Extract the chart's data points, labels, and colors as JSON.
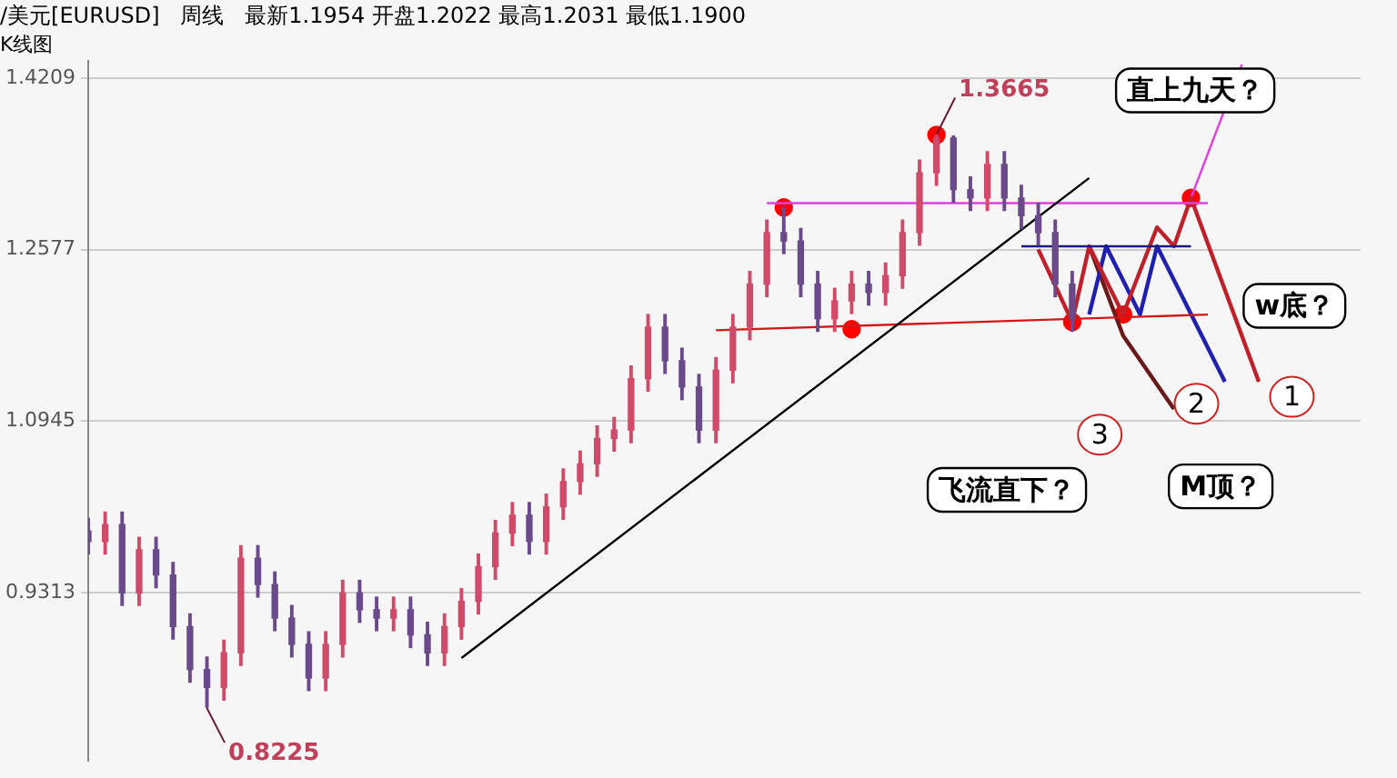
{
  "chart_data": {
    "type": "candlestick",
    "title": "/美元[EURUSD]   周线   最新1.1954 开盘1.2022 最高1.2031 最低1.1900",
    "subtitle": "K线图",
    "categories": [
      null,
      null,
      null,
      null,
      null,
      null,
      null,
      null,
      null,
      null,
      null,
      null,
      null,
      null,
      null,
      null,
      null,
      null,
      null,
      null,
      null,
      null,
      null,
      null,
      null,
      null,
      null,
      null,
      null,
      null,
      null,
      null,
      null,
      null,
      null,
      null,
      null,
      null,
      null,
      null,
      null,
      null,
      null,
      null,
      null,
      null,
      null,
      null,
      null,
      null,
      null,
      null,
      null,
      null,
      null,
      null,
      null,
      null,
      null,
      null,
      null,
      null,
      null,
      null,
      null,
      null,
      null,
      null,
      null,
      null,
      null,
      null,
      null,
      null,
      null,
      null
    ],
    "ohlc": [
      [
        0.99,
        1.002,
        0.968,
        0.98
      ],
      [
        0.98,
        1.008,
        0.968,
        0.996
      ],
      [
        0.996,
        1.008,
        0.919,
        0.931
      ],
      [
        0.931,
        0.984,
        0.919,
        0.972
      ],
      [
        0.972,
        0.984,
        0.936,
        0.948
      ],
      [
        0.948,
        0.96,
        0.887,
        0.899
      ],
      [
        0.899,
        0.911,
        0.846,
        0.858
      ],
      [
        0.858,
        0.87,
        0.8225,
        0.841
      ],
      [
        0.841,
        0.886,
        0.829,
        0.874
      ],
      [
        0.874,
        0.976,
        0.862,
        0.964
      ],
      [
        0.964,
        0.976,
        0.927,
        0.939
      ],
      [
        0.939,
        0.951,
        0.895,
        0.907
      ],
      [
        0.907,
        0.919,
        0.87,
        0.882
      ],
      [
        0.882,
        0.894,
        0.838,
        0.85
      ],
      [
        0.85,
        0.894,
        0.838,
        0.882
      ],
      [
        0.882,
        0.943,
        0.87,
        0.931
      ],
      [
        0.931,
        0.943,
        0.903,
        0.915
      ],
      [
        0.915,
        0.927,
        0.895,
        0.907
      ],
      [
        0.907,
        0.927,
        0.895,
        0.915
      ],
      [
        0.915,
        0.927,
        0.879,
        0.891
      ],
      [
        0.891,
        0.903,
        0.862,
        0.874
      ],
      [
        0.874,
        0.911,
        0.862,
        0.899
      ],
      [
        0.899,
        0.935,
        0.887,
        0.923
      ],
      [
        0.923,
        0.968,
        0.911,
        0.956
      ],
      [
        0.956,
        1.0,
        0.944,
        0.988
      ],
      [
        0.988,
        1.017,
        0.976,
        1.005
      ],
      [
        1.005,
        1.017,
        0.968,
        0.98
      ],
      [
        0.98,
        1.025,
        0.968,
        1.013
      ],
      [
        1.013,
        1.049,
        1.001,
        1.037
      ],
      [
        1.037,
        1.066,
        1.025,
        1.054
      ],
      [
        1.054,
        1.09,
        1.042,
        1.078
      ],
      [
        1.078,
        1.098,
        1.066,
        1.086
      ],
      [
        1.086,
        1.147,
        1.074,
        1.135
      ],
      [
        1.135,
        1.196,
        1.123,
        1.184
      ],
      [
        1.184,
        1.196,
        1.14,
        1.152
      ],
      [
        1.152,
        1.164,
        1.115,
        1.127
      ],
      [
        1.127,
        1.139,
        1.074,
        1.086
      ],
      [
        1.086,
        1.155,
        1.074,
        1.143
      ],
      [
        1.143,
        1.196,
        1.131,
        1.184
      ],
      [
        1.184,
        1.237,
        1.172,
        1.225
      ],
      [
        1.225,
        1.286,
        1.213,
        1.274
      ],
      [
        1.274,
        1.298,
        1.254,
        1.266
      ],
      [
        1.266,
        1.278,
        1.213,
        1.225
      ],
      [
        1.225,
        1.237,
        1.18,
        1.192
      ],
      [
        1.192,
        1.221,
        1.18,
        1.209
      ],
      [
        1.209,
        1.237,
        1.197,
        1.225
      ],
      [
        1.225,
        1.237,
        1.205,
        1.217
      ],
      [
        1.217,
        1.245,
        1.205,
        1.233
      ],
      [
        1.233,
        1.286,
        1.221,
        1.274
      ],
      [
        1.274,
        1.343,
        1.262,
        1.331
      ],
      [
        1.331,
        1.3665,
        1.319,
        1.364
      ],
      [
        1.364,
        1.366,
        1.303,
        1.315
      ],
      [
        1.315,
        1.327,
        1.295,
        1.307
      ],
      [
        1.307,
        1.351,
        1.295,
        1.339
      ],
      [
        1.339,
        1.351,
        1.295,
        1.307
      ],
      [
        1.307,
        1.319,
        1.278,
        1.29
      ],
      [
        1.29,
        1.302,
        1.262,
        1.274
      ],
      [
        1.274,
        1.286,
        1.213,
        1.225
      ],
      [
        1.225,
        1.237,
        1.18,
        1.192
      ],
      null,
      null,
      null,
      null,
      null,
      null,
      null,
      null,
      null,
      null,
      null,
      null,
      null,
      null,
      null,
      null,
      null
    ],
    "colors": [
      "#6a4a8a",
      "#d04a6a",
      "#6a4a8a",
      "#d04a6a",
      "#6a4a8a",
      "#6a4a8a",
      "#6a4a8a",
      "#6a4a8a",
      "#d04a6a",
      "#d04a6a",
      "#6a4a8a",
      "#6a4a8a",
      "#6a4a8a",
      "#6a4a8a",
      "#d04a6a",
      "#d04a6a",
      "#6a4a8a",
      "#6a4a8a",
      "#d04a6a",
      "#6a4a8a",
      "#6a4a8a",
      "#d04a6a",
      "#d04a6a",
      "#d04a6a",
      "#d04a6a",
      "#d04a6a",
      "#6a4a8a",
      "#d04a6a",
      "#d04a6a",
      "#d04a6a",
      "#d04a6a",
      "#d04a6a",
      "#d04a6a",
      "#d04a6a",
      "#6a4a8a",
      "#6a4a8a",
      "#6a4a8a",
      "#d04a6a",
      "#d04a6a",
      "#d04a6a",
      "#d04a6a",
      "#6a4a8a",
      "#6a4a8a",
      "#6a4a8a",
      "#d04a6a",
      "#d04a6a",
      "#6a4a8a",
      "#d04a6a",
      "#d04a6a",
      "#d04a6a",
      "#d04a6a",
      "#6a4a8a",
      "#6a4a8a",
      "#d04a6a",
      "#6a4a8a",
      "#6a4a8a",
      "#6a4a8a",
      "#6a4a8a",
      "#6a4a8a",
      null,
      null,
      null,
      null,
      null,
      null,
      null,
      null,
      null,
      null,
      null,
      null,
      null,
      null,
      null,
      null,
      null
    ],
    "series": [
      {
        "type": "line",
        "color": "#000000",
        "marker": "none",
        "values": [
          null,
          null,
          null,
          null,
          null,
          null,
          null,
          null,
          null,
          null,
          null,
          null,
          null,
          null,
          null,
          null,
          null,
          null,
          null,
          null,
          null,
          null,
          0.869,
          null,
          null,
          null,
          null,
          null,
          null,
          null,
          null,
          null,
          null,
          null,
          null,
          null,
          null,
          null,
          null,
          null,
          null,
          null,
          null,
          null,
          null,
          null,
          null,
          null,
          null,
          null,
          null,
          null,
          null,
          null,
          null,
          null,
          null,
          null,
          null,
          1.326,
          null,
          null,
          null,
          null,
          null,
          null,
          null,
          null,
          null,
          null,
          null,
          null,
          null,
          null,
          null,
          null
        ]
      },
      {
        "type": "line",
        "color": "#e040e0",
        "marker": "none",
        "values": [
          null,
          null,
          null,
          null,
          null,
          null,
          null,
          null,
          null,
          null,
          null,
          null,
          null,
          null,
          null,
          null,
          null,
          null,
          null,
          null,
          null,
          null,
          null,
          null,
          null,
          null,
          null,
          null,
          null,
          null,
          null,
          null,
          null,
          null,
          null,
          null,
          null,
          null,
          null,
          null,
          1.302,
          null,
          null,
          null,
          null,
          null,
          null,
          null,
          null,
          null,
          null,
          null,
          null,
          null,
          null,
          null,
          null,
          null,
          null,
          null,
          null,
          null,
          null,
          null,
          null,
          null,
          1.302,
          null,
          null,
          null,
          null,
          null,
          null,
          null,
          null,
          null
        ]
      },
      {
        "type": "line",
        "color": "#d01818",
        "marker": "none",
        "values": [
          null,
          null,
          null,
          null,
          null,
          null,
          null,
          null,
          null,
          null,
          null,
          null,
          null,
          null,
          null,
          null,
          null,
          null,
          null,
          null,
          null,
          null,
          null,
          null,
          null,
          null,
          null,
          null,
          null,
          null,
          null,
          null,
          null,
          null,
          null,
          null,
          null,
          1.181,
          null,
          null,
          null,
          null,
          null,
          null,
          null,
          null,
          null,
          null,
          null,
          null,
          null,
          null,
          null,
          null,
          null,
          null,
          null,
          null,
          null,
          null,
          null,
          null,
          null,
          null,
          null,
          null,
          1.196,
          null,
          null,
          null,
          null,
          null,
          null,
          null,
          null,
          null
        ]
      },
      {
        "type": "line",
        "color": "#1a1a80",
        "marker": "none",
        "values": [
          null,
          null,
          null,
          null,
          null,
          null,
          null,
          null,
          null,
          null,
          null,
          null,
          null,
          null,
          null,
          null,
          null,
          null,
          null,
          null,
          null,
          null,
          null,
          null,
          null,
          null,
          null,
          null,
          null,
          null,
          null,
          null,
          null,
          null,
          null,
          null,
          null,
          null,
          null,
          null,
          null,
          null,
          null,
          null,
          null,
          null,
          null,
          null,
          null,
          null,
          null,
          null,
          null,
          null,
          null,
          1.261,
          null,
          null,
          null,
          null,
          null,
          null,
          null,
          null,
          null,
          1.261,
          null,
          null,
          null,
          null,
          null,
          null,
          null,
          null,
          null,
          null
        ]
      },
      {
        "type": "line",
        "color": "#c0202a",
        "marker": "none",
        "values": [
          null,
          null,
          null,
          null,
          null,
          null,
          null,
          null,
          null,
          null,
          null,
          null,
          null,
          null,
          null,
          null,
          null,
          null,
          null,
          null,
          null,
          null,
          null,
          null,
          null,
          null,
          null,
          null,
          null,
          null,
          null,
          null,
          null,
          null,
          null,
          null,
          null,
          null,
          null,
          null,
          null,
          null,
          null,
          null,
          null,
          null,
          null,
          null,
          null,
          null,
          null,
          null,
          null,
          null,
          null,
          null,
          1.258,
          null,
          1.189,
          1.261,
          null,
          1.196,
          null,
          1.279,
          1.261,
          1.307,
          null,
          null,
          null,
          1.132,
          null,
          null,
          null,
          null,
          null,
          null
        ]
      },
      {
        "type": "line",
        "color": "#2020b0",
        "marker": "none",
        "values": [
          null,
          null,
          null,
          null,
          null,
          null,
          null,
          null,
          null,
          null,
          null,
          null,
          null,
          null,
          null,
          null,
          null,
          null,
          null,
          null,
          null,
          null,
          null,
          null,
          null,
          null,
          null,
          null,
          null,
          null,
          null,
          null,
          null,
          null,
          null,
          null,
          null,
          null,
          null,
          null,
          null,
          null,
          null,
          null,
          null,
          null,
          null,
          null,
          null,
          null,
          null,
          null,
          null,
          null,
          null,
          null,
          null,
          null,
          null,
          1.196,
          1.261,
          null,
          1.196,
          1.261,
          null,
          null,
          null,
          1.132,
          null,
          null,
          null,
          null,
          null,
          null,
          null,
          null
        ]
      },
      {
        "type": "line",
        "color": "#6a1a1a",
        "marker": "none",
        "values": [
          null,
          null,
          null,
          null,
          null,
          null,
          null,
          null,
          null,
          null,
          null,
          null,
          null,
          null,
          null,
          null,
          null,
          null,
          null,
          null,
          null,
          null,
          null,
          null,
          null,
          null,
          null,
          null,
          null,
          null,
          null,
          null,
          null,
          null,
          null,
          null,
          null,
          null,
          null,
          null,
          null,
          null,
          null,
          null,
          null,
          null,
          null,
          null,
          null,
          null,
          null,
          null,
          null,
          null,
          null,
          null,
          null,
          null,
          null,
          1.261,
          null,
          1.176,
          null,
          null,
          1.106,
          null,
          null,
          null,
          null,
          null,
          null,
          null,
          null,
          null,
          null,
          null
        ]
      },
      {
        "type": "line",
        "color": "#e040e0",
        "marker": "none",
        "values": [
          null,
          null,
          null,
          null,
          null,
          null,
          null,
          null,
          null,
          null,
          null,
          null,
          null,
          null,
          null,
          null,
          null,
          null,
          null,
          null,
          null,
          null,
          null,
          null,
          null,
          null,
          null,
          null,
          null,
          null,
          null,
          null,
          null,
          null,
          null,
          null,
          null,
          null,
          null,
          null,
          null,
          null,
          null,
          null,
          null,
          null,
          null,
          null,
          null,
          null,
          null,
          null,
          null,
          null,
          null,
          null,
          null,
          null,
          null,
          null,
          null,
          null,
          null,
          null,
          null,
          1.307,
          null,
          null,
          1.434,
          null,
          null,
          null,
          null,
          null,
          null,
          null
        ]
      },
      {
        "type": "scatter",
        "color": "#ff0000",
        "marker": "circle",
        "values": [
          null,
          null,
          null,
          null,
          null,
          null,
          null,
          null,
          null,
          null,
          null,
          null,
          null,
          null,
          null,
          null,
          null,
          null,
          null,
          null,
          null,
          null,
          null,
          null,
          null,
          null,
          null,
          null,
          null,
          null,
          null,
          null,
          null,
          null,
          null,
          null,
          null,
          null,
          null,
          null,
          null,
          1.298,
          null,
          null,
          null,
          1.182,
          null,
          null,
          null,
          null,
          1.367,
          null,
          null,
          null,
          null,
          null,
          null,
          null,
          1.189,
          null,
          null,
          1.196,
          null,
          null,
          null,
          1.307,
          null,
          null,
          null,
          null,
          null,
          null,
          null,
          null,
          null,
          null
        ]
      }
    ],
    "ylim": [
      0.7714,
      1.4373
    ],
    "yticks": [
      0.9313,
      1.0945,
      1.2577,
      1.4209
    ],
    "tick_labels": "y",
    "grid": "y",
    "annotations": [
      "1.3665",
      "0.8225",
      "直上九天？",
      "w底？",
      "M顶？",
      "飞流直下？",
      "1",
      "2",
      "3"
    ]
  }
}
